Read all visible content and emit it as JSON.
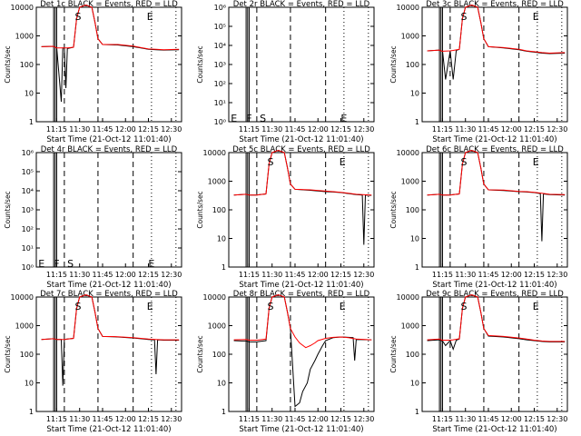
{
  "xaxis_title": "Start Time (21-Oct-12 11:01:40)",
  "ylabel": "Counts/sec",
  "x_tick_labels": [
    "11:15",
    "11:30",
    "11:45",
    "12:00",
    "12:15",
    "12:30"
  ],
  "colors": {
    "events": "#000000",
    "lld": "#ff0000",
    "axes": "#000000"
  },
  "chart_data": [
    {
      "type": "line",
      "title": "Det 1c BLACK = Events, RED = LLD",
      "yscale": "log",
      "ylim": [
        1,
        10000
      ],
      "y_tick_labels": [
        "1",
        "10",
        "100",
        "1000",
        "10000"
      ],
      "marker_labels": [
        "S",
        "E"
      ],
      "series": [
        {
          "name": "Events",
          "x": [
            "11:05",
            "11:13",
            "11:14",
            "11:15",
            "11:18",
            "11:19",
            "11:20",
            "11:21",
            "11:22",
            "11:24",
            "11:26",
            "11:28",
            "11:30",
            "11:34",
            "11:38",
            "11:40",
            "11:42",
            "11:45",
            "11:55",
            "12:05",
            "12:10",
            "12:15",
            "12:20",
            "12:25",
            "12:35"
          ],
          "values": [
            420,
            430,
            400,
            380,
            5,
            380,
            380,
            15,
            360,
            380,
            400,
            4000,
            10000,
            12000,
            10000,
            3000,
            800,
            500,
            480,
            420,
            380,
            340,
            330,
            320,
            330
          ]
        },
        {
          "name": "LLD",
          "x": [
            "11:05",
            "11:13",
            "11:14",
            "11:15",
            "11:20",
            "11:22",
            "11:26",
            "11:28",
            "11:30",
            "11:34",
            "11:38",
            "11:40",
            "11:42",
            "11:45",
            "11:55",
            "12:05",
            "12:10",
            "12:15",
            "12:20",
            "12:25",
            "12:35"
          ],
          "values": [
            420,
            430,
            400,
            380,
            380,
            380,
            400,
            4000,
            10000,
            12000,
            10000,
            3000,
            800,
            500,
            500,
            440,
            390,
            350,
            340,
            330,
            340
          ]
        }
      ]
    },
    {
      "type": "line",
      "title": "Det 2r BLACK = Events, RED = LLD",
      "yscale": "log",
      "ylim": [
        1,
        1000000
      ],
      "y_tick_labels": [
        "10⁰",
        "10¹",
        "10²",
        "10³",
        "10⁴",
        "10⁵",
        "10⁶"
      ],
      "marker_labels": [
        "E",
        "F",
        "S",
        "E"
      ],
      "series": []
    },
    {
      "type": "line",
      "title": "Det 3c BLACK = Events, RED = LLD",
      "yscale": "log",
      "ylim": [
        1,
        10000
      ],
      "y_tick_labels": [
        "1",
        "10",
        "100",
        "1000",
        "10000"
      ],
      "marker_labels": [
        "S",
        "E"
      ],
      "series": [
        {
          "name": "Events",
          "x": [
            "11:05",
            "11:13",
            "11:14",
            "11:15",
            "11:17",
            "11:20",
            "11:22",
            "11:24",
            "11:26",
            "11:28",
            "11:30",
            "11:34",
            "11:38",
            "11:40",
            "11:42",
            "11:45",
            "11:55",
            "12:05",
            "12:10",
            "12:15",
            "12:20",
            "12:25",
            "12:35"
          ],
          "values": [
            300,
            320,
            300,
            290,
            30,
            300,
            30,
            310,
            340,
            4000,
            10000,
            12000,
            10000,
            3000,
            800,
            420,
            380,
            330,
            290,
            270,
            250,
            240,
            250
          ]
        },
        {
          "name": "LLD",
          "x": [
            "11:05",
            "11:13",
            "11:14",
            "11:15",
            "11:20",
            "11:22",
            "11:26",
            "11:28",
            "11:30",
            "11:34",
            "11:38",
            "11:40",
            "11:42",
            "11:45",
            "11:55",
            "12:05",
            "12:10",
            "12:15",
            "12:20",
            "12:25",
            "12:35"
          ],
          "values": [
            300,
            320,
            300,
            290,
            300,
            310,
            340,
            4000,
            10000,
            12000,
            10000,
            3000,
            800,
            420,
            390,
            340,
            300,
            280,
            260,
            250,
            260
          ]
        }
      ]
    },
    {
      "type": "line",
      "title": "Det 4r BLACK = Events, RED = LLD",
      "yscale": "log",
      "ylim": [
        1,
        1000000
      ],
      "y_tick_labels": [
        "10⁰",
        "10¹",
        "10²",
        "10³",
        "10⁴",
        "10⁵",
        "10⁶"
      ],
      "marker_labels": [
        "E",
        "F",
        "S",
        "E"
      ],
      "series": []
    },
    {
      "type": "line",
      "title": "Det 5c BLACK = Events, RED = LLD",
      "yscale": "log",
      "ylim": [
        1,
        10000
      ],
      "y_tick_labels": [
        "1",
        "10",
        "100",
        "1000",
        "10000"
      ],
      "marker_labels": [
        "S",
        "E"
      ],
      "series": [
        {
          "name": "Events",
          "x": [
            "11:05",
            "11:13",
            "11:14",
            "11:15",
            "11:20",
            "11:22",
            "11:26",
            "11:28",
            "11:30",
            "11:34",
            "11:38",
            "11:40",
            "11:42",
            "11:45",
            "11:55",
            "12:05",
            "12:10",
            "12:15",
            "12:20",
            "12:25",
            "12:29",
            "12:30",
            "12:31",
            "12:35"
          ],
          "values": [
            330,
            350,
            340,
            330,
            330,
            340,
            360,
            4000,
            10000,
            12000,
            10000,
            3000,
            800,
            520,
            480,
            430,
            420,
            400,
            370,
            340,
            330,
            6,
            330,
            320
          ]
        },
        {
          "name": "LLD",
          "x": [
            "11:05",
            "11:13",
            "11:14",
            "11:15",
            "11:20",
            "11:22",
            "11:26",
            "11:28",
            "11:30",
            "11:34",
            "11:38",
            "11:40",
            "11:42",
            "11:45",
            "11:55",
            "12:05",
            "12:10",
            "12:15",
            "12:20",
            "12:25",
            "12:35"
          ],
          "values": [
            330,
            350,
            340,
            330,
            330,
            340,
            360,
            4000,
            10000,
            12000,
            10000,
            3000,
            800,
            520,
            500,
            450,
            430,
            410,
            380,
            350,
            330
          ]
        }
      ]
    },
    {
      "type": "line",
      "title": "Det 6c BLACK = Events, RED = LLD",
      "yscale": "log",
      "ylim": [
        1,
        10000
      ],
      "y_tick_labels": [
        "1",
        "10",
        "100",
        "1000",
        "10000"
      ],
      "marker_labels": [
        "S",
        "E"
      ],
      "series": [
        {
          "name": "Events",
          "x": [
            "11:05",
            "11:13",
            "11:14",
            "11:15",
            "11:20",
            "11:22",
            "11:26",
            "11:28",
            "11:30",
            "11:34",
            "11:38",
            "11:40",
            "11:42",
            "11:45",
            "11:55",
            "12:05",
            "12:10",
            "12:15",
            "12:19",
            "12:20",
            "12:21",
            "12:25",
            "12:35"
          ],
          "values": [
            330,
            350,
            340,
            330,
            330,
            340,
            360,
            4000,
            10000,
            12000,
            10000,
            3000,
            800,
            500,
            470,
            430,
            420,
            400,
            370,
            8,
            360,
            340,
            330
          ]
        },
        {
          "name": "LLD",
          "x": [
            "11:05",
            "11:13",
            "11:14",
            "11:15",
            "11:20",
            "11:22",
            "11:26",
            "11:28",
            "11:30",
            "11:34",
            "11:38",
            "11:40",
            "11:42",
            "11:45",
            "11:55",
            "12:05",
            "12:10",
            "12:15",
            "12:20",
            "12:25",
            "12:35"
          ],
          "values": [
            330,
            350,
            340,
            330,
            330,
            340,
            360,
            4000,
            10000,
            12000,
            10000,
            3000,
            800,
            500,
            490,
            440,
            430,
            410,
            380,
            350,
            340
          ]
        }
      ]
    },
    {
      "type": "line",
      "title": "Det 7c BLACK = Events, RED = LLD",
      "yscale": "log",
      "ylim": [
        1,
        10000
      ],
      "y_tick_labels": [
        "1",
        "10",
        "100",
        "1000",
        "10000"
      ],
      "marker_labels": [
        "S",
        "E"
      ],
      "series": [
        {
          "name": "Events",
          "x": [
            "11:05",
            "11:13",
            "11:14",
            "11:15",
            "11:18",
            "11:19",
            "11:20",
            "11:22",
            "11:26",
            "11:28",
            "11:30",
            "11:34",
            "11:38",
            "11:40",
            "11:42",
            "11:45",
            "11:55",
            "12:05",
            "12:10",
            "12:15",
            "12:19",
            "12:20",
            "12:21",
            "12:25",
            "12:35"
          ],
          "values": [
            330,
            350,
            340,
            330,
            330,
            8,
            330,
            340,
            360,
            4000,
            10000,
            12000,
            10000,
            3000,
            800,
            420,
            400,
            370,
            350,
            330,
            320,
            20,
            320,
            310,
            310
          ]
        },
        {
          "name": "LLD",
          "x": [
            "11:05",
            "11:13",
            "11:14",
            "11:15",
            "11:20",
            "11:22",
            "11:26",
            "11:28",
            "11:30",
            "11:34",
            "11:38",
            "11:40",
            "11:42",
            "11:45",
            "11:55",
            "12:05",
            "12:10",
            "12:15",
            "12:20",
            "12:25",
            "12:35"
          ],
          "values": [
            330,
            350,
            340,
            330,
            330,
            340,
            360,
            4000,
            10000,
            12000,
            10000,
            3000,
            800,
            420,
            410,
            380,
            360,
            340,
            330,
            320,
            320
          ]
        }
      ]
    },
    {
      "type": "line",
      "title": "Det 8r BLACK = Events, RED = LLD",
      "yscale": "log",
      "ylim": [
        1,
        10000
      ],
      "y_tick_labels": [
        "1",
        "10",
        "100",
        "1000",
        "10000"
      ],
      "marker_labels": [
        "S",
        "E"
      ],
      "series": [
        {
          "name": "Events",
          "x": [
            "11:05",
            "11:10",
            "11:13",
            "11:14",
            "11:15",
            "11:20",
            "11:22",
            "11:26",
            "11:28",
            "11:30",
            "11:34",
            "11:38",
            "11:40",
            "11:42",
            "11:45",
            "11:48",
            "11:50",
            "11:53",
            "11:55",
            "11:58",
            "12:00",
            "12:03",
            "12:05",
            "12:10",
            "12:15",
            "12:20",
            "12:23",
            "12:24",
            "12:25",
            "12:35"
          ],
          "values": [
            300,
            290,
            290,
            280,
            270,
            270,
            280,
            300,
            4000,
            10000,
            12000,
            10000,
            3000,
            800,
            1.5,
            2,
            5,
            10,
            30,
            60,
            100,
            200,
            300,
            380,
            400,
            390,
            380,
            60,
            330,
            320
          ]
        },
        {
          "name": "LLD",
          "x": [
            "11:05",
            "11:13",
            "11:14",
            "11:15",
            "11:20",
            "11:22",
            "11:26",
            "11:28",
            "11:30",
            "11:34",
            "11:38",
            "11:40",
            "11:42",
            "11:45",
            "11:48",
            "11:52",
            "11:55",
            "11:58",
            "12:00",
            "12:05",
            "12:10",
            "12:15",
            "12:20",
            "12:25",
            "12:35"
          ],
          "values": [
            320,
            330,
            320,
            310,
            310,
            320,
            340,
            4000,
            10000,
            12000,
            10000,
            3000,
            800,
            400,
            250,
            170,
            200,
            250,
            300,
            360,
            390,
            400,
            380,
            340,
            320
          ]
        }
      ]
    },
    {
      "type": "line",
      "title": "Det 9c BLACK = Events, RED = LLD",
      "yscale": "log",
      "ylim": [
        1,
        10000
      ],
      "y_tick_labels": [
        "1",
        "10",
        "100",
        "1000",
        "10000"
      ],
      "marker_labels": [
        "S",
        "E"
      ],
      "series": [
        {
          "name": "Events",
          "x": [
            "11:05",
            "11:13",
            "11:14",
            "11:15",
            "11:17",
            "11:20",
            "11:22",
            "11:24",
            "11:26",
            "11:28",
            "11:30",
            "11:34",
            "11:38",
            "11:40",
            "11:42",
            "11:45",
            "11:55",
            "12:05",
            "12:10",
            "12:15",
            "12:20",
            "12:25",
            "12:35"
          ],
          "values": [
            300,
            320,
            300,
            290,
            200,
            300,
            150,
            310,
            340,
            4000,
            10000,
            12000,
            10000,
            3000,
            800,
            430,
            400,
            350,
            320,
            300,
            280,
            270,
            270
          ]
        },
        {
          "name": "LLD",
          "x": [
            "11:05",
            "11:13",
            "11:14",
            "11:15",
            "11:20",
            "11:22",
            "11:26",
            "11:28",
            "11:30",
            "11:34",
            "11:38",
            "11:40",
            "11:42",
            "11:45",
            "11:55",
            "12:05",
            "12:10",
            "12:15",
            "12:20",
            "12:25",
            "12:35"
          ],
          "values": [
            320,
            340,
            320,
            310,
            310,
            320,
            350,
            4000,
            10000,
            12000,
            10000,
            3000,
            800,
            450,
            420,
            370,
            340,
            310,
            290,
            280,
            280
          ]
        }
      ]
    }
  ]
}
